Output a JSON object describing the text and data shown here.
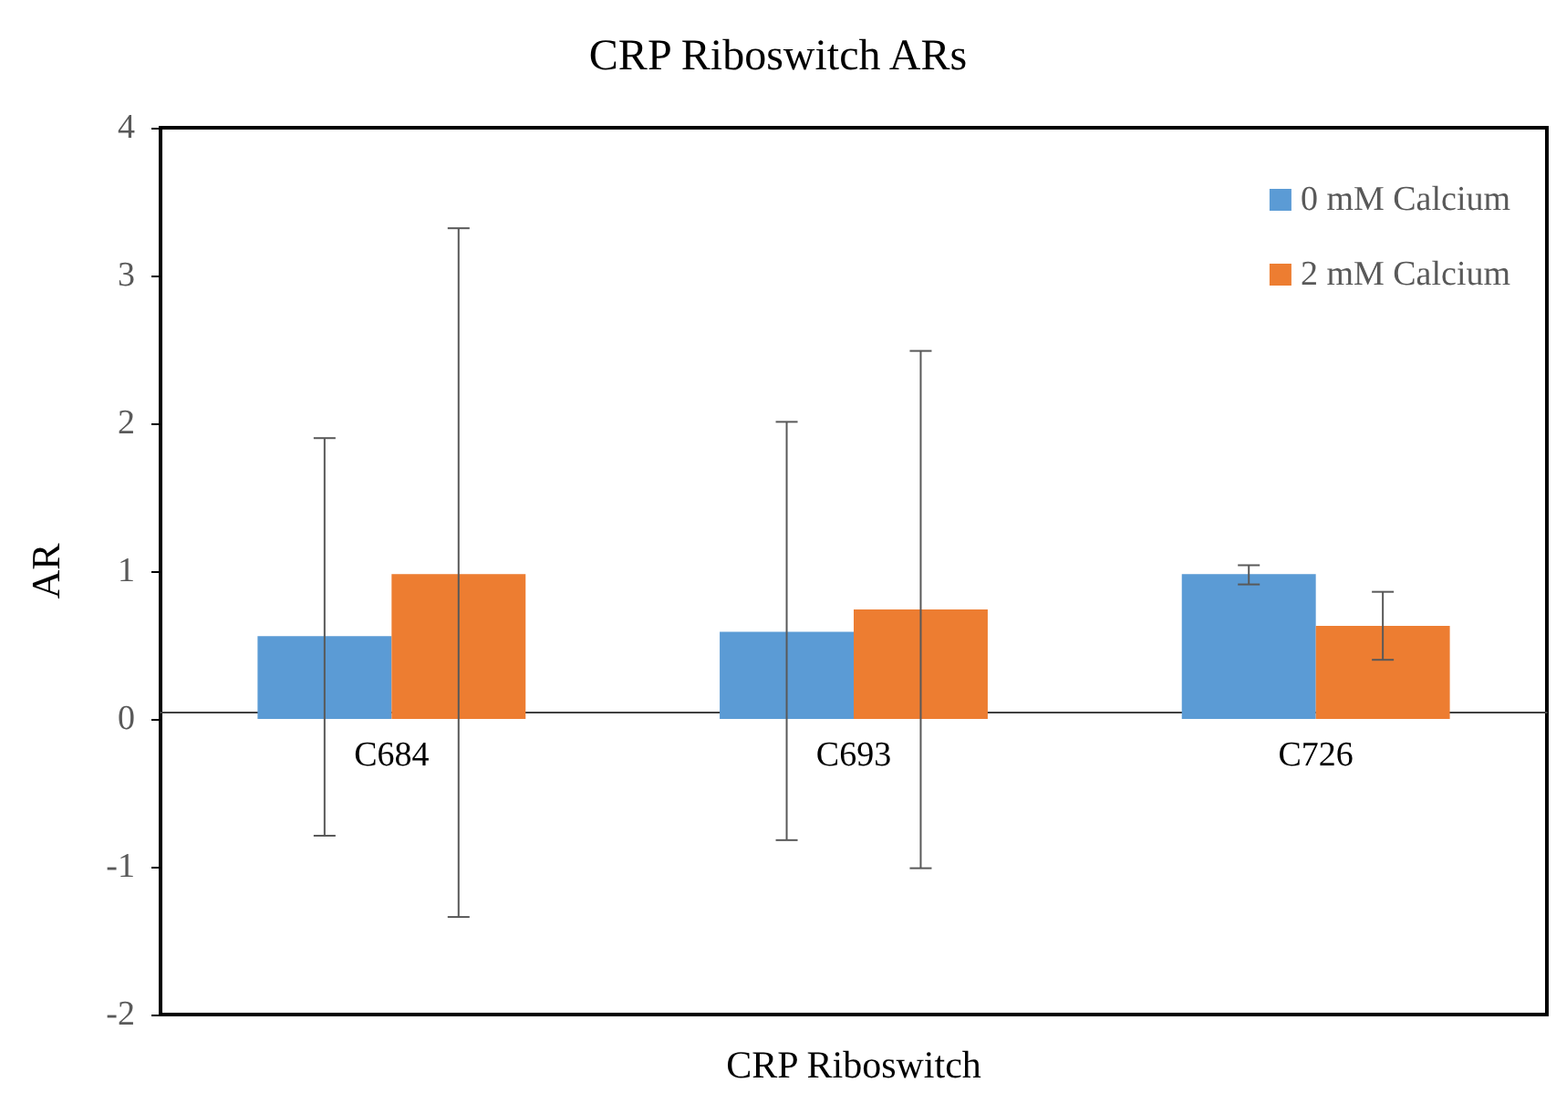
{
  "chart_data": {
    "type": "bar",
    "title": "CRP Riboswitch ARs",
    "xlabel": "CRP Riboswitch",
    "ylabel": "AR",
    "categories": [
      "C684",
      "C693",
      "C726"
    ],
    "series": [
      {
        "name": "0 mM Calcium",
        "color": "#5b9bd5",
        "values": [
          0.56,
          0.59,
          0.98
        ],
        "errors": [
          [
            -0.79,
            1.9
          ],
          [
            -0.82,
            2.01
          ],
          [
            0.91,
            1.04
          ]
        ]
      },
      {
        "name": "2 mM Calcium",
        "color": "#ed7d31",
        "values": [
          0.98,
          0.74,
          0.63
        ],
        "errors": [
          [
            -1.34,
            3.32
          ],
          [
            -1.01,
            2.49
          ],
          [
            0.4,
            0.86
          ]
        ]
      }
    ],
    "ylim": [
      -2,
      4
    ],
    "yticks": [
      -2,
      -1,
      0,
      1,
      2,
      3,
      4
    ],
    "legend": "top right"
  }
}
